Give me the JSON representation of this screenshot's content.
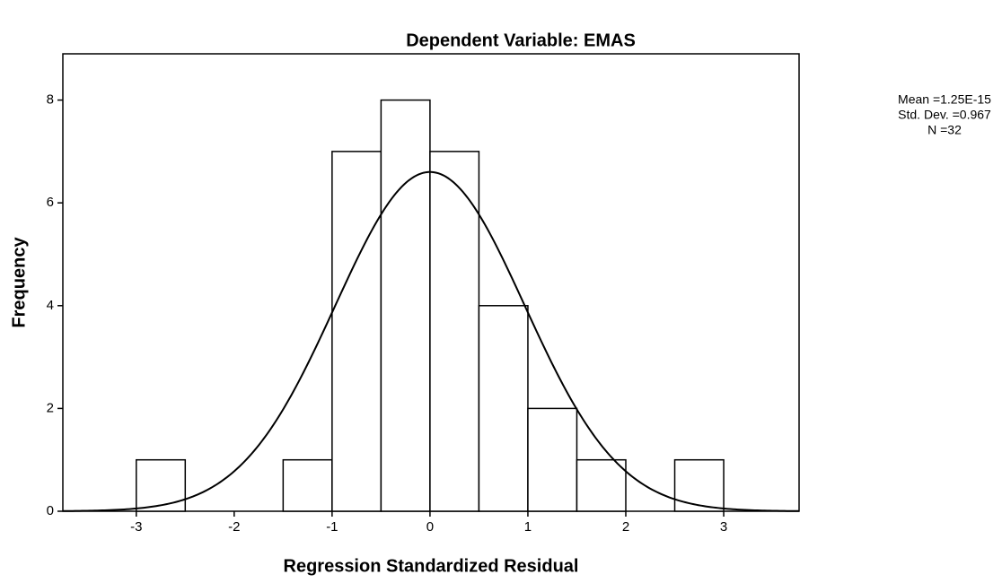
{
  "chart_data": {
    "type": "histogram",
    "title": "Dependent Variable: EMAS",
    "xlabel": "Regression Standardized Residual",
    "ylabel": "Frequency",
    "bins": [
      -3,
      -2.5,
      -2,
      -1.5,
      -1,
      -0.5,
      0,
      0.5,
      1,
      1.5,
      2,
      2.5,
      3
    ],
    "counts": [
      1,
      0,
      0,
      1,
      7,
      8,
      7,
      4,
      2,
      1,
      0,
      1
    ],
    "color": "#ffffff",
    "xlim": [
      -3.75,
      3.77
    ],
    "xticks": [
      -3,
      -2,
      -1,
      0,
      1,
      2,
      3
    ],
    "ylim": [
      0,
      8.9
    ],
    "yticks": [
      0,
      2,
      4,
      6,
      8
    ],
    "normal_curve": {
      "mean": 1.25e-15,
      "sd": 0.967,
      "n": 32
    },
    "stats": [
      "Mean =1.25E-15",
      "Std. Dev. =0.967",
      "N =32"
    ]
  }
}
